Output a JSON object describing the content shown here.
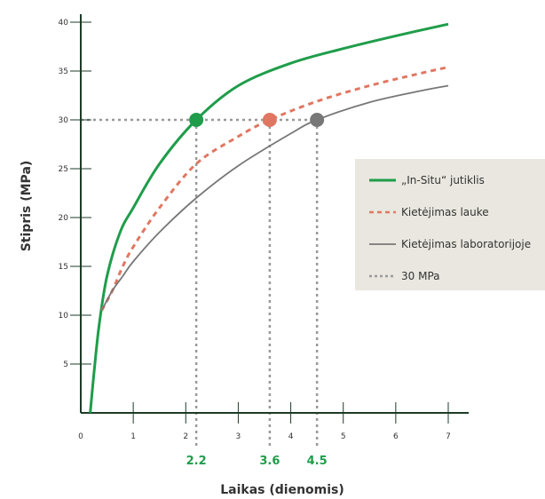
{
  "chart_data": {
    "type": "line",
    "xlabel": "Laikas (dienomis)",
    "ylabel": "Stipris (MPa)",
    "xlim": [
      0,
      7
    ],
    "ylim": [
      0,
      40
    ],
    "x_ticks": [
      0,
      1,
      2,
      3,
      4,
      5,
      6,
      7
    ],
    "y_ticks": [
      5,
      10,
      15,
      20,
      25,
      30,
      35,
      40
    ],
    "grid": false,
    "legend_position": "right",
    "series": [
      {
        "name": "„In-Situ“ jutiklis",
        "style": "solid",
        "color": "#1f9d4a",
        "x": [
          0.18,
          0.25,
          0.35,
          0.5,
          0.75,
          1.0,
          1.5,
          2.2,
          3.0,
          4.0,
          5.0,
          6.0,
          7.0
        ],
        "y": [
          0.0,
          4.0,
          9.0,
          14.0,
          18.5,
          21.0,
          25.5,
          30.0,
          33.5,
          35.8,
          37.3,
          38.6,
          39.8
        ]
      },
      {
        "name": "Kietėjimas lauke",
        "style": "dashed",
        "color": "#e07762",
        "x": [
          0.4,
          0.6,
          0.8,
          1.0,
          1.5,
          2.2,
          3.0,
          3.6,
          4.5,
          5.5,
          6.5,
          7.0
        ],
        "y": [
          10.5,
          12.5,
          15.0,
          17.0,
          21.0,
          25.5,
          28.3,
          30.0,
          31.9,
          33.5,
          34.8,
          35.4
        ]
      },
      {
        "name": "Kietėjimas laboratorijoje",
        "style": "solid",
        "color": "#777777",
        "x": [
          0.4,
          0.6,
          0.8,
          1.0,
          1.5,
          2.2,
          3.0,
          4.0,
          4.5,
          5.5,
          6.5,
          7.0
        ],
        "y": [
          10.5,
          12.5,
          14.0,
          15.5,
          18.5,
          22.0,
          25.3,
          28.6,
          30.0,
          31.8,
          33.0,
          33.5
        ]
      },
      {
        "name": "30 MPa",
        "style": "dotted",
        "color": "#999999",
        "x": [
          0,
          4.5
        ],
        "y": [
          30,
          30
        ]
      }
    ],
    "markers": [
      {
        "x": 2.2,
        "y": 30,
        "label": "2.2",
        "color": "#1f9d4a"
      },
      {
        "x": 3.6,
        "y": 30,
        "label": "3.6",
        "color": "#e07762"
      },
      {
        "x": 4.5,
        "y": 30,
        "label": "4.5",
        "color": "#777777"
      }
    ],
    "legend_background": "#e9e7df",
    "axis_color": "#1d3b28",
    "marker_label_color": "#1f9d4a"
  }
}
